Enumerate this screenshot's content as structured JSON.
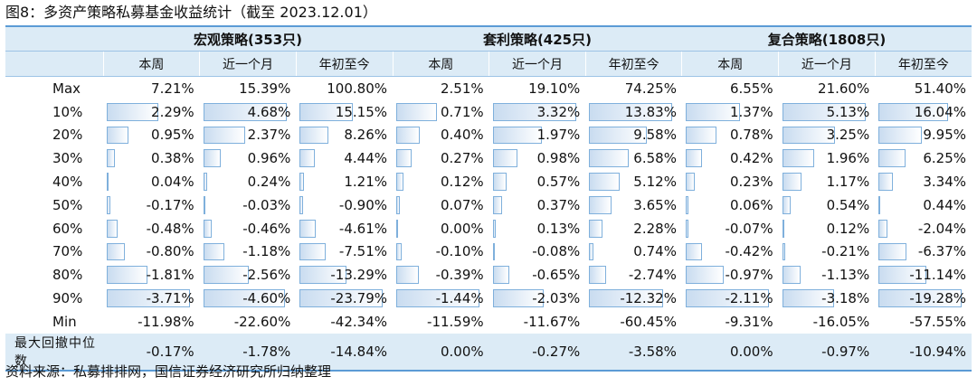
{
  "title": "图8：多资产策略私募基金收益统计（截至 2023.12.01）",
  "groups": [
    {
      "label": "宏观策略(353只)"
    },
    {
      "label": "套利策略(425只)"
    },
    {
      "label": "复合策略(1808只)"
    }
  ],
  "subheaders": [
    "本周",
    "近一个月",
    "年初至今",
    "本周",
    "近一个月",
    "年初至今",
    "本周",
    "近一个月",
    "年初至今"
  ],
  "rows": [
    {
      "label": "Max",
      "values": [
        "7.21%",
        "15.39%",
        "100.80%",
        "2.51%",
        "19.10%",
        "74.25%",
        "6.55%",
        "21.60%",
        "51.40%"
      ]
    },
    {
      "label": "10%",
      "values": [
        "2.29%",
        "4.68%",
        "15.15%",
        "0.71%",
        "3.32%",
        "13.83%",
        "1.37%",
        "5.13%",
        "16.04%"
      ]
    },
    {
      "label": "20%",
      "values": [
        "0.95%",
        "2.37%",
        "8.26%",
        "0.40%",
        "1.97%",
        "9.58%",
        "0.78%",
        "3.25%",
        "9.95%"
      ]
    },
    {
      "label": "30%",
      "values": [
        "0.38%",
        "0.96%",
        "4.44%",
        "0.27%",
        "0.98%",
        "6.58%",
        "0.42%",
        "1.96%",
        "6.25%"
      ]
    },
    {
      "label": "40%",
      "values": [
        "0.04%",
        "0.24%",
        "1.21%",
        "0.12%",
        "0.57%",
        "5.12%",
        "0.23%",
        "1.17%",
        "3.34%"
      ]
    },
    {
      "label": "50%",
      "values": [
        "-0.17%",
        "-0.03%",
        "-0.90%",
        "0.07%",
        "0.37%",
        "3.65%",
        "0.06%",
        "0.54%",
        "0.44%"
      ]
    },
    {
      "label": "60%",
      "values": [
        "-0.48%",
        "-0.46%",
        "-4.61%",
        "0.00%",
        "0.13%",
        "2.28%",
        "-0.07%",
        "0.12%",
        "-2.04%"
      ]
    },
    {
      "label": "70%",
      "values": [
        "-0.80%",
        "-1.18%",
        "-7.51%",
        "-0.10%",
        "-0.08%",
        "0.74%",
        "-0.42%",
        "-0.21%",
        "-6.37%"
      ]
    },
    {
      "label": "80%",
      "values": [
        "-1.81%",
        "-2.56%",
        "-13.29%",
        "-0.39%",
        "-0.65%",
        "-2.74%",
        "-0.97%",
        "-1.13%",
        "-11.14%"
      ]
    },
    {
      "label": "90%",
      "values": [
        "-3.71%",
        "-4.60%",
        "-23.79%",
        "-1.44%",
        "-2.03%",
        "-12.32%",
        "-2.11%",
        "-3.18%",
        "-19.28%"
      ]
    },
    {
      "label": "Min",
      "values": [
        "-11.98%",
        "-22.60%",
        "-42.34%",
        "-11.59%",
        "-11.67%",
        "-60.45%",
        "-9.31%",
        "-16.05%",
        "-57.55%"
      ]
    }
  ],
  "footer": {
    "label": "最大回撤中位数",
    "values": [
      "-0.17%",
      "-1.78%",
      "-14.84%",
      "0.00%",
      "-0.27%",
      "-3.58%",
      "0.00%",
      "-0.97%",
      "-10.94%"
    ]
  },
  "bar_columns": {
    "note_rows": [
      "10%",
      "20%",
      "30%",
      "40%",
      "50%",
      "60%",
      "70%",
      "80%",
      "90%"
    ]
  },
  "source": "资料来源：私募排排网，国信证券经济研究所归纳整理",
  "colors": {
    "header_bg": "#dcebf6",
    "rule": "#5b9bd5",
    "bar": "#c9dcf0"
  }
}
